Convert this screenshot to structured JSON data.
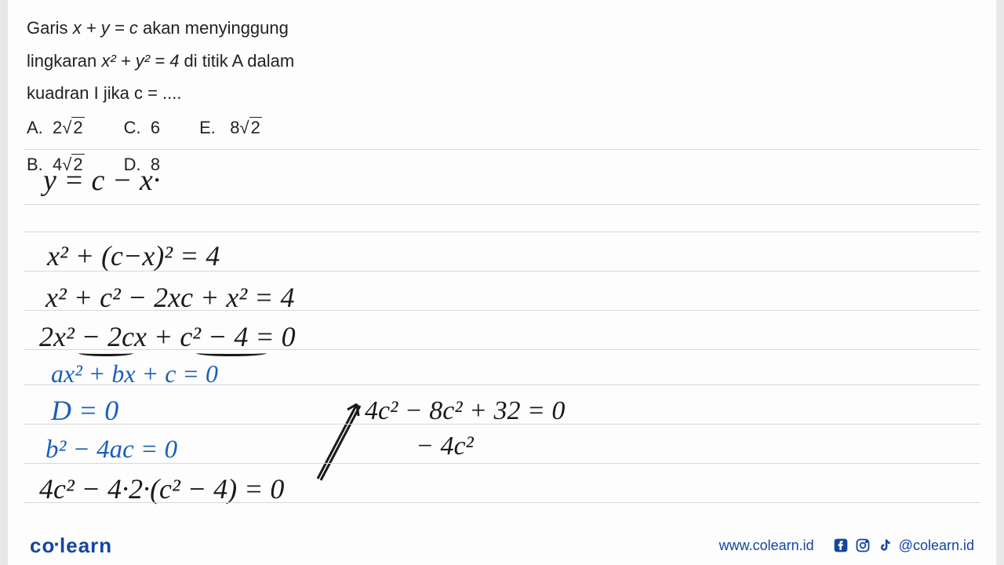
{
  "question": {
    "line1_pre": "Garis ",
    "line1_eq": "x + y = c",
    "line1_post": " akan menyinggung",
    "line2_pre": "lingkaran  ",
    "line2_eq": "x² + y² = 4",
    "line2_post": "  di titik A dalam",
    "line3": "kuadran I jika c = ....",
    "options": {
      "A": {
        "label": "A.",
        "coef": "2",
        "rad": "2"
      },
      "B": {
        "label": "B.",
        "coef": "4",
        "rad": "2"
      },
      "C": {
        "label": "C.",
        "value": "6"
      },
      "D": {
        "label": "D.",
        "value": "8"
      },
      "E": {
        "label": "E.",
        "coef": "8",
        "rad": "2"
      }
    }
  },
  "handwriting": {
    "l1": "y = c − x·",
    "l2": "x² + (c−x)² = 4",
    "l3": "x² + c² − 2xc + x² = 4",
    "l4": "2x² − 2cx + c² − 4 = 0",
    "l5": "ax² + bx + c = 0",
    "l6": "D = 0",
    "l7": "b² − 4ac = 0",
    "l8": "4c² − 4·2·(c² − 4) = 0",
    "r1": "4c² − 8c² + 32 = 0",
    "r2": "− 4c²"
  },
  "ruled_lines": {
    "positions": [
      0,
      70,
      105,
      155,
      205,
      255,
      300,
      350,
      400,
      450
    ],
    "color": "#d8d8d8"
  },
  "footer": {
    "logo_a": "co",
    "logo_b": "learn",
    "url": "www.colearn.id",
    "handle": "@colearn.id"
  },
  "colors": {
    "background": "#e8e8e8",
    "paper": "#fdfdfd",
    "text": "#222222",
    "handwriting_black": "#1a1a1a",
    "handwriting_blue": "#1b5fb8",
    "brand": "#1346a0",
    "rule": "#d8d8d8"
  }
}
